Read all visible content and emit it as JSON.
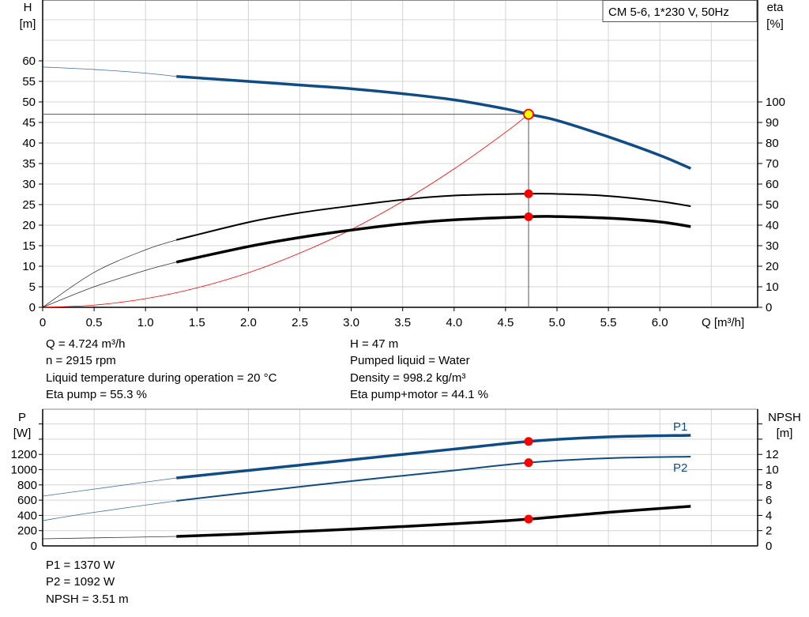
{
  "chart_data": [
    {
      "type": "line",
      "legend_box": "CM 5-6, 1*230 V, 50Hz",
      "xlabel": "Q [m³/h]",
      "ylabel_left": [
        "H",
        "[m]"
      ],
      "ylabel_right": [
        "eta",
        "[%]"
      ],
      "xlim": [
        0,
        6.95
      ],
      "ylim_left": [
        0,
        75
      ],
      "ylim_right": [
        0,
        150
      ],
      "x_ticks": [
        "0",
        "0.5",
        "1.0",
        "1.5",
        "2.0",
        "2.5",
        "3.0",
        "3.5",
        "4.0",
        "4.5",
        "5.0",
        "5.5",
        "6.0"
      ],
      "y_ticks_left": [
        "0",
        "5",
        "10",
        "15",
        "20",
        "25",
        "30",
        "35",
        "40",
        "45",
        "50",
        "55",
        "60"
      ],
      "y_ticks_right": [
        "0",
        "10",
        "20",
        "30",
        "40",
        "50",
        "60",
        "70",
        "80",
        "90",
        "100"
      ],
      "grid": true,
      "recommended_range_start_q": 1.3,
      "operating_point": {
        "q": 4.724,
        "h": 47,
        "eta_pump": 55.3,
        "eta_total": 44.1
      },
      "series": [
        {
          "id": "H",
          "axis": "left",
          "color": "#0f4c85",
          "points": [
            [
              0,
              58.5
            ],
            [
              0.5,
              57.9
            ],
            [
              1.0,
              57.0
            ],
            [
              1.3,
              56.2
            ],
            [
              2.0,
              55.0
            ],
            [
              2.5,
              54.1
            ],
            [
              3.0,
              53.2
            ],
            [
              3.5,
              52.0
            ],
            [
              4.0,
              50.5
            ],
            [
              4.5,
              48.3
            ],
            [
              4.724,
              47.0
            ],
            [
              5.0,
              45.5
            ],
            [
              5.5,
              41.5
            ],
            [
              6.0,
              37.0
            ],
            [
              6.3,
              33.8
            ]
          ]
        },
        {
          "id": "eta_pump",
          "axis": "right",
          "color": "#000000",
          "points": [
            [
              0,
              0
            ],
            [
              0.5,
              17
            ],
            [
              1.0,
              28
            ],
            [
              1.3,
              32.8
            ],
            [
              2.0,
              41.4
            ],
            [
              2.5,
              46.0
            ],
            [
              3.0,
              49.4
            ],
            [
              3.5,
              52.4
            ],
            [
              4.0,
              54.4
            ],
            [
              4.724,
              55.3
            ],
            [
              5.0,
              55.2
            ],
            [
              5.5,
              54.2
            ],
            [
              6.0,
              51.6
            ],
            [
              6.3,
              49.2
            ]
          ]
        },
        {
          "id": "eta_pump_motor",
          "axis": "right",
          "color": "#000000",
          "points": [
            [
              0,
              0
            ],
            [
              0.5,
              10
            ],
            [
              1.0,
              18
            ],
            [
              1.3,
              22
            ],
            [
              2.0,
              29.6
            ],
            [
              2.5,
              34.0
            ],
            [
              3.0,
              37.6
            ],
            [
              3.5,
              40.6
            ],
            [
              4.0,
              42.6
            ],
            [
              4.724,
              44.1
            ],
            [
              5.0,
              44.2
            ],
            [
              5.5,
              43.4
            ],
            [
              6.0,
              41.6
            ],
            [
              6.3,
              39.3
            ]
          ]
        },
        {
          "id": "system_curve",
          "axis": "left",
          "color": "#ff0000",
          "points": [
            [
              0,
              0
            ],
            [
              0.5,
              0.53
            ],
            [
              1.0,
              2.11
            ],
            [
              1.5,
              4.74
            ],
            [
              2.0,
              8.42
            ],
            [
              2.5,
              13.2
            ],
            [
              3.0,
              18.95
            ],
            [
              3.5,
              25.8
            ],
            [
              4.0,
              33.7
            ],
            [
              4.5,
              42.6
            ],
            [
              4.724,
              47.0
            ]
          ]
        }
      ]
    },
    {
      "type": "line",
      "ylabel_left": [
        "P",
        "[W]"
      ],
      "ylabel_right": [
        "NPSH",
        "[m]"
      ],
      "xlim": [
        0,
        6.95
      ],
      "ylim_left": [
        0,
        1700
      ],
      "ylim_right": [
        0,
        17
      ],
      "y_ticks_left": [
        "0",
        "200",
        "400",
        "600",
        "800",
        "1000",
        "1200"
      ],
      "y_ticks_right": [
        "0",
        "2",
        "4",
        "6",
        "8",
        "10",
        "12"
      ],
      "grid": true,
      "recommended_range_start_q": 1.3,
      "series": [
        {
          "id": "P1",
          "name": "P1",
          "axis": "left",
          "color": "#0f4c85",
          "points": [
            [
              0,
              653
            ],
            [
              0.5,
              745
            ],
            [
              1.3,
              891
            ],
            [
              2.0,
              990
            ],
            [
              3.0,
              1130
            ],
            [
              4.0,
              1270
            ],
            [
              4.724,
              1370
            ],
            [
              5.5,
              1430
            ],
            [
              6.3,
              1451
            ]
          ]
        },
        {
          "id": "P2",
          "name": "P2",
          "axis": "left",
          "color": "#0f4c85",
          "points": [
            [
              0,
              332
            ],
            [
              0.5,
              440
            ],
            [
              1.3,
              591
            ],
            [
              2.0,
              700
            ],
            [
              3.0,
              850
            ],
            [
              4.0,
              990
            ],
            [
              4.724,
              1092
            ],
            [
              5.5,
              1150
            ],
            [
              6.3,
              1171
            ]
          ]
        },
        {
          "id": "NPSH",
          "axis": "right",
          "color": "#000000",
          "points": [
            [
              0,
              0.93
            ],
            [
              0.7,
              1.1
            ],
            [
              1.3,
              1.24
            ],
            [
              2.0,
              1.6
            ],
            [
              3.0,
              2.2
            ],
            [
              4.0,
              2.9
            ],
            [
              4.724,
              3.51
            ],
            [
              5.5,
              4.4
            ],
            [
              6.3,
              5.2
            ]
          ]
        }
      ],
      "operating_point": {
        "q": 4.724,
        "p1": 1370,
        "p2": 1092,
        "npsh": 3.51
      }
    }
  ],
  "info": {
    "left": [
      "Q = 4.724 m³/h",
      "n = 2915 rpm",
      "Liquid temperature during operation = 20 °C",
      "Eta pump = 55.3 %"
    ],
    "right": [
      "H = 47 m",
      "Pumped liquid = Water",
      "Density = 998.2 kg/m³",
      "Eta pump+motor = 44.1 %"
    ],
    "bottom": [
      "P1 = 1370 W",
      "P2 = 1092 W",
      "NPSH = 3.51 m"
    ]
  }
}
